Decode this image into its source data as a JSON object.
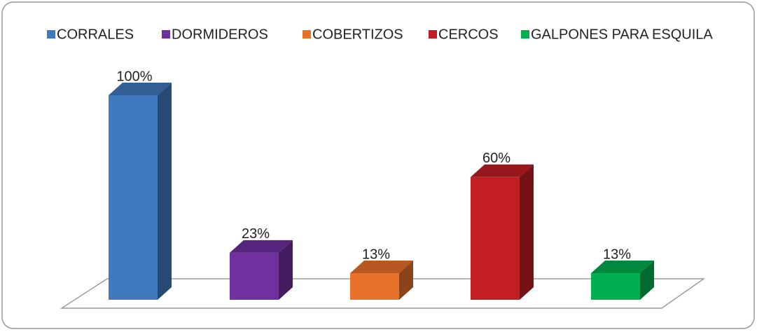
{
  "chart_data": {
    "type": "bar",
    "series": [
      {
        "name": "CORRALES",
        "color": "#4179bf",
        "values": [
          100
        ],
        "value_labels": [
          "100%"
        ]
      },
      {
        "name": "DORMIDEROS",
        "color": "#7030a0",
        "values": [
          23
        ],
        "value_labels": [
          "23%"
        ]
      },
      {
        "name": "COBERTIZOS",
        "color": "#e8712a",
        "values": [
          13
        ],
        "value_labels": [
          "13%"
        ]
      },
      {
        "name": "CERCOS",
        "color": "#c21e24",
        "values": [
          60
        ],
        "value_labels": [
          "60%"
        ]
      },
      {
        "name": "GALPONES PARA ESQUILA",
        "color": "#00b050",
        "values": [
          13
        ],
        "value_labels": [
          "13%"
        ]
      }
    ],
    "legend": "top"
  }
}
